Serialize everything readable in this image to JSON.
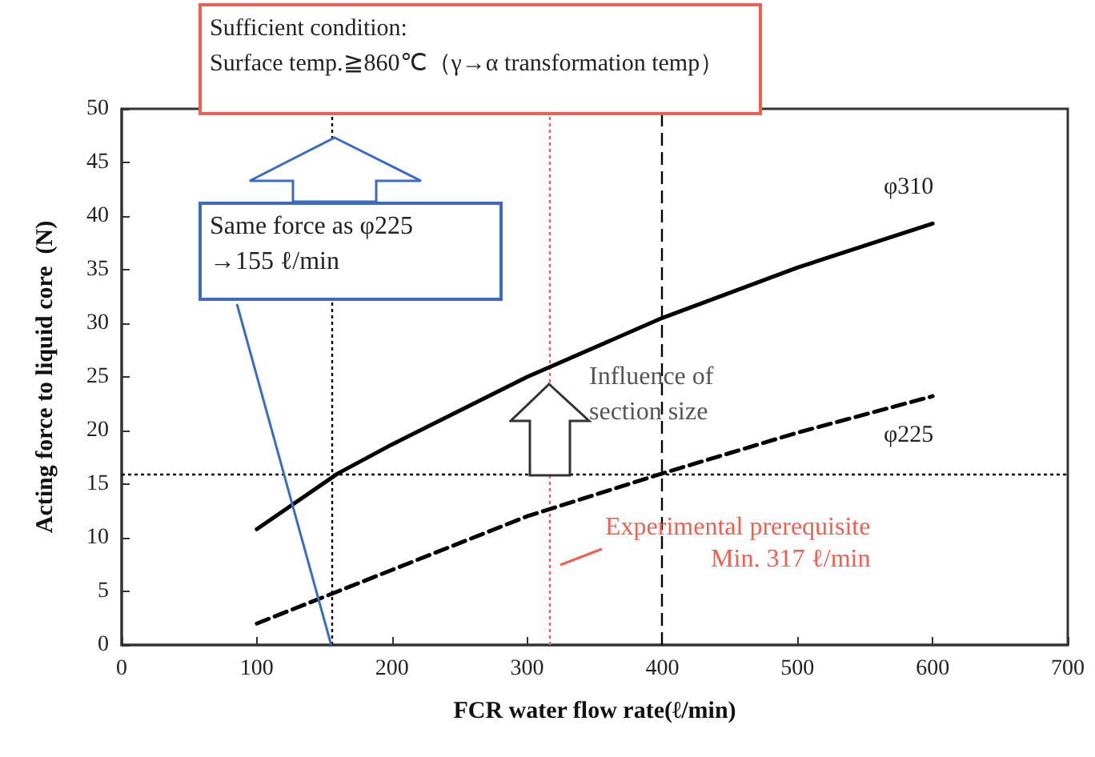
{
  "chart_data": {
    "type": "line",
    "xlabel": "FCR water flow rate(ℓ/min)",
    "ylabel": "Acting force to liquid core  (N)",
    "x": [
      100,
      160,
      200,
      300,
      400,
      500,
      600
    ],
    "series": [
      {
        "name": "φ310",
        "color": "#000000",
        "line_style": "solid",
        "values": [
          10.8,
          16,
          18.7,
          25,
          30.5,
          35.2,
          39.3
        ]
      },
      {
        "name": "φ225",
        "color": "#000000",
        "line_style": "dashed",
        "values": [
          2,
          5,
          7,
          12,
          16,
          19.8,
          23.2
        ]
      }
    ],
    "xlim": [
      0,
      700
    ],
    "xticks": [
      0,
      100,
      200,
      300,
      400,
      500,
      600,
      700
    ],
    "ylim": [
      0,
      50
    ],
    "yticks": [
      0,
      5,
      10,
      15,
      20,
      25,
      30,
      35,
      40,
      45,
      50
    ],
    "marker": "none",
    "grid": false,
    "ref_lines": [
      {
        "axis": "x",
        "value": 155,
        "label": null,
        "color": "#000000",
        "line_style": "dotted"
      },
      {
        "axis": "y",
        "value": 16,
        "label": null,
        "color": "#000000",
        "line_style": "dotted"
      },
      {
        "axis": "x",
        "value": 400,
        "label": null,
        "color": "#000000",
        "line_style": "dashed"
      },
      {
        "axis": "x",
        "value": 317,
        "label": "Experimental prerequisite\nMin. 317 ℓ/min",
        "color": "#f06050",
        "line_style": "dotted"
      }
    ],
    "annotations": [
      "Sufficient condition:\nSurface temp.≧860℃（γ→α transformation temp）",
      {
        "text": "Same force as φ225\n→155 ℓ/min",
        "x": 155,
        "y": 0
      },
      "Influence of\nsection size"
    ]
  }
}
